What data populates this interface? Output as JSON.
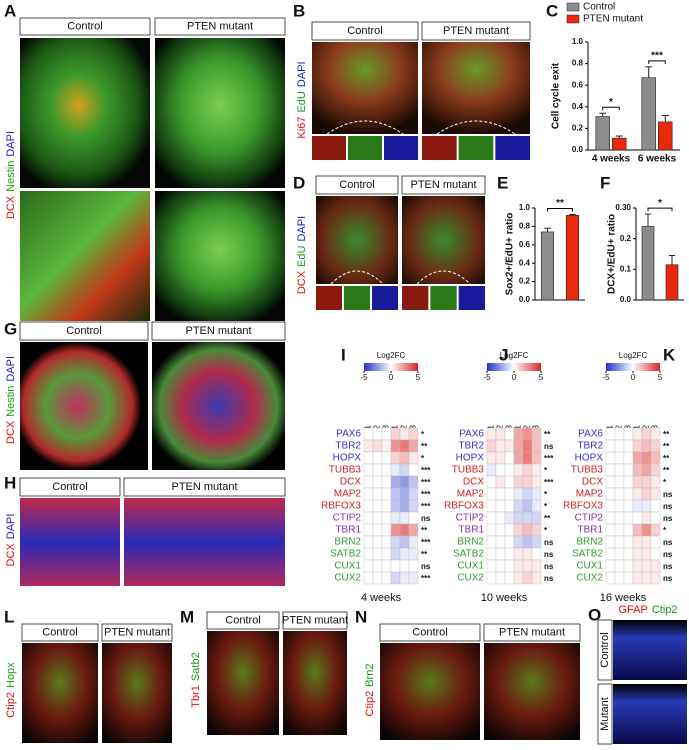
{
  "panels": [
    {
      "letter": "A",
      "stains": [
        "DCX",
        "Nestin",
        "DAPI"
      ],
      "stain_colors": [
        "#e01010",
        "#1a9a1a",
        "#1a1acc"
      ],
      "conditions": [
        "Control",
        "PTEN mutant"
      ]
    },
    {
      "letter": "B",
      "stains": [
        "Ki67",
        "EdU",
        "DAPI"
      ],
      "stain_colors": [
        "#e01010",
        "#1a9a1a",
        "#1a1acc"
      ],
      "conditions": [
        "Control",
        "PTEN mutant"
      ]
    },
    {
      "letter": "D",
      "stains": [
        "DCX",
        "EdU",
        "DAPI"
      ],
      "stain_colors": [
        "#e01010",
        "#1a9a1a",
        "#1a1acc"
      ],
      "conditions": [
        "Control",
        "PTEN mutant"
      ]
    },
    {
      "letter": "G",
      "stains": [
        "DCX",
        "Nestin",
        "DAPI"
      ],
      "stain_colors": [
        "#e01010",
        "#1a9a1a",
        "#1a1acc"
      ],
      "conditions": [
        "Control",
        "PTEN mutant"
      ]
    },
    {
      "letter": "H",
      "stains": [
        "DCX",
        "DAPI"
      ],
      "stain_colors": [
        "#e01010",
        "#1a1acc"
      ],
      "conditions": [
        "Control",
        "PTEN mutant"
      ]
    },
    {
      "letter": "L",
      "stains": [
        "Ctip2",
        "Hopx"
      ],
      "stain_colors": [
        "#e01010",
        "#1a9a1a"
      ],
      "conditions": [
        "Control",
        "PTEN mutant"
      ]
    },
    {
      "letter": "M",
      "stains": [
        "Tbr1",
        "Satb2"
      ],
      "stain_colors": [
        "#e01010",
        "#1a9a1a"
      ],
      "conditions": [
        "Control",
        "PTEN mutant"
      ]
    },
    {
      "letter": "N",
      "stains": [
        "Ctip2",
        "Brn2"
      ],
      "stain_colors": [
        "#e01010",
        "#1a9a1a"
      ],
      "conditions": [
        "Control",
        "PTEN mutant"
      ]
    },
    {
      "letter": "O",
      "stains": [
        "GFAP",
        "Ctip2"
      ],
      "stain_colors": [
        "#e01010",
        "#1a9a1a"
      ],
      "conditions": [
        "Control",
        "Mutant"
      ]
    }
  ],
  "chart_data": [
    {
      "type": "bar",
      "panel": "C",
      "ylabel": "Cell cycle exit",
      "categories": [
        "4 weeks",
        "6 weeks"
      ],
      "series": [
        {
          "name": "Control",
          "color": "#8c8c8c",
          "values": [
            0.31,
            0.67
          ],
          "errors": [
            0.03,
            0.1
          ]
        },
        {
          "name": "PTEN mutant",
          "color": "#e8290b",
          "values": [
            0.11,
            0.26
          ],
          "errors": [
            0.02,
            0.06
          ]
        }
      ],
      "significance": [
        "*",
        "***"
      ],
      "legend": "top",
      "ylim": [
        0,
        1.0
      ],
      "yticks": [
        {
          "value": 0,
          "label": "0.0"
        },
        0.2,
        0.4,
        0.6,
        0.8,
        {
          "value": 1.0,
          "label": "1.0"
        }
      ]
    },
    {
      "type": "bar",
      "panel": "E",
      "ylabel": "Sox2+/EdU+ ratio",
      "values": [
        0.74,
        0.92
      ],
      "errors": [
        0.04,
        0.01
      ],
      "colors": [
        "#8c8c8c",
        "#e8290b"
      ],
      "significance": "**",
      "ylim": [
        0,
        1.0
      ],
      "yticks": [
        {
          "value": 0,
          "label": "0.0"
        },
        0.2,
        0.4,
        0.6,
        0.8,
        {
          "value": 1.0,
          "label": "1.0"
        }
      ]
    },
    {
      "type": "bar",
      "panel": "F",
      "ylabel": "DCX+/EdU+ ratio",
      "values": [
        0.24,
        0.115
      ],
      "errors": [
        0.04,
        0.03
      ],
      "colors": [
        "#8c8c8c",
        "#e8290b"
      ],
      "significance": "*",
      "ylim": [
        0,
        0.3
      ],
      "yticks": [
        {
          "value": 0,
          "label": "0.0"
        },
        0.1,
        0.2,
        {
          "value": 0.3,
          "label": "0.30"
        }
      ]
    },
    {
      "type": "heatmap",
      "panel": "I",
      "colorbar_title": "Log2FC",
      "clim": [
        -5,
        5
      ],
      "cticks": [
        -5,
        0,
        5
      ],
      "columns": [
        "Control-1",
        "Control-2",
        "Control-3",
        "PTEN-1",
        "PTEN-2",
        "PTEN-3"
      ],
      "rows": [
        "PAX6",
        "TBR2",
        "HOPX",
        "TUBB3",
        "DCX",
        "MAP2",
        "RBFOX3",
        "CTIP2",
        "TBR1",
        "BRN2",
        "SATB2",
        "CUX1",
        "CUX2"
      ],
      "row_colors": [
        "#3333cc",
        "#3333cc",
        "#3333cc",
        "#cc2222",
        "#cc2222",
        "#cc2222",
        "#cc2222",
        "#8833aa",
        "#8833aa",
        "#339933",
        "#339933",
        "#339933",
        "#339933"
      ],
      "values": [
        [
          0,
          0,
          0,
          1,
          0.5,
          1
        ],
        [
          0.5,
          0.8,
          0.3,
          2.5,
          3,
          2
        ],
        [
          0,
          0,
          0,
          1,
          1.5,
          0.5
        ],
        [
          0,
          0,
          0,
          -0.5,
          -1,
          0
        ],
        [
          0,
          0,
          0,
          -2,
          -2.5,
          -1.5
        ],
        [
          0,
          0,
          0,
          -1.5,
          -2,
          -1
        ],
        [
          0,
          0,
          0,
          -1.5,
          -2,
          -1
        ],
        [
          0,
          0,
          0,
          -0.5,
          -0.5,
          0
        ],
        [
          0,
          0,
          0,
          2.5,
          3,
          2
        ],
        [
          0,
          0,
          0,
          -1,
          -1.5,
          -0.5
        ],
        [
          0,
          0,
          0,
          -1,
          -0.5,
          -0.5
        ],
        [
          0,
          0,
          0,
          0,
          0,
          0
        ],
        [
          0,
          0,
          0,
          -1,
          -0.5,
          -0.5
        ]
      ],
      "significance": [
        "*",
        "**",
        "*",
        "***",
        "***",
        "***",
        "***",
        "ns",
        "**",
        "***",
        "**",
        "ns",
        "***"
      ],
      "xlabel": "4 weeks"
    },
    {
      "type": "heatmap",
      "panel": "J",
      "colorbar_title": "Log2FC",
      "clim": [
        -5,
        5
      ],
      "cticks": [
        -5,
        0,
        5
      ],
      "columns": [
        "Control-1",
        "Control-2",
        "Control-3",
        "PTEN-1",
        "PTEN-2",
        "PTEN-3"
      ],
      "rows": [
        "PAX6",
        "TBR2",
        "HOPX",
        "TUBB3",
        "DCX",
        "MAP2",
        "RBFOX3",
        "CTIP2",
        "TBR1",
        "BRN2",
        "SATB2",
        "CUX1",
        "CUX2"
      ],
      "row_colors": [
        "#3333cc",
        "#3333cc",
        "#3333cc",
        "#cc2222",
        "#cc2222",
        "#cc2222",
        "#cc2222",
        "#8833aa",
        "#8833aa",
        "#339933",
        "#339933",
        "#339933",
        "#339933"
      ],
      "values": [
        [
          0.5,
          0.5,
          0,
          2,
          2.5,
          1.5
        ],
        [
          1,
          0.5,
          0.5,
          2,
          3,
          1.5
        ],
        [
          0.5,
          0.5,
          0,
          2,
          3,
          1.5
        ],
        [
          -0.5,
          0,
          0,
          0.5,
          1,
          0.5
        ],
        [
          0,
          0.5,
          0,
          1,
          1,
          0.5
        ],
        [
          0,
          0,
          0,
          -0.5,
          -1,
          -0.5
        ],
        [
          0,
          0,
          0,
          -1,
          -1.5,
          -0.5
        ],
        [
          0,
          0,
          -0.5,
          -1,
          -1,
          -1
        ],
        [
          0,
          0,
          0,
          1,
          1.5,
          1
        ],
        [
          0,
          0,
          0,
          -1,
          -1.5,
          -1
        ],
        [
          0,
          0,
          0,
          0.5,
          0.5,
          0
        ],
        [
          0,
          0,
          0,
          0.5,
          0.5,
          0.5
        ],
        [
          0,
          0,
          0,
          0.5,
          1,
          0.5
        ]
      ],
      "significance": [
        "**",
        "ns",
        "***",
        "*",
        "***",
        "*",
        "*",
        "**",
        "*",
        "ns",
        "ns",
        "ns",
        "ns"
      ],
      "xlabel": "10 weeks"
    },
    {
      "type": "heatmap",
      "panel": "K",
      "colorbar_title": "Log2FC",
      "clim": [
        -5,
        5
      ],
      "cticks": [
        -5,
        0,
        5
      ],
      "columns": [
        "Control-1",
        "Control-2",
        "Control-3",
        "PTEN-1",
        "PTEN-2",
        "PTEN-3"
      ],
      "rows": [
        "PAX6",
        "TBR2",
        "HOPX",
        "TUBB3",
        "DCX",
        "MAP2",
        "RBFOX3",
        "CTIP2",
        "TBR1",
        "BRN2",
        "SATB2",
        "CUX1",
        "CUX2"
      ],
      "row_colors": [
        "#3333cc",
        "#3333cc",
        "#3333cc",
        "#cc2222",
        "#cc2222",
        "#cc2222",
        "#cc2222",
        "#8833aa",
        "#8833aa",
        "#339933",
        "#339933",
        "#339933",
        "#339933"
      ],
      "values": [
        [
          0,
          0,
          0,
          0.5,
          1,
          0.5
        ],
        [
          0,
          0,
          0,
          1,
          1.5,
          1
        ],
        [
          0,
          0,
          0,
          2,
          2.5,
          1.5
        ],
        [
          0,
          0,
          0,
          1.5,
          2,
          1
        ],
        [
          0,
          0,
          0,
          1,
          1,
          0.5
        ],
        [
          0,
          0,
          0,
          0.5,
          1,
          0.5
        ],
        [
          0,
          0,
          0,
          -0.5,
          -0.5,
          0
        ],
        [
          0,
          0,
          0,
          0,
          0.5,
          0
        ],
        [
          0,
          0,
          0,
          1.5,
          2.5,
          1
        ],
        [
          0,
          0,
          0,
          0.5,
          0.5,
          0
        ],
        [
          0,
          0,
          0,
          0.5,
          0.5,
          0
        ],
        [
          0,
          0,
          0,
          0.5,
          0.5,
          0.5
        ],
        [
          0,
          0,
          0,
          0.5,
          0.5,
          0.5
        ]
      ],
      "significance": [
        "**",
        "**",
        "**",
        "**",
        "*",
        "ns",
        "ns",
        "ns",
        "*",
        "ns",
        "ns",
        "ns",
        "ns"
      ],
      "xlabel": "16 weeks"
    }
  ]
}
